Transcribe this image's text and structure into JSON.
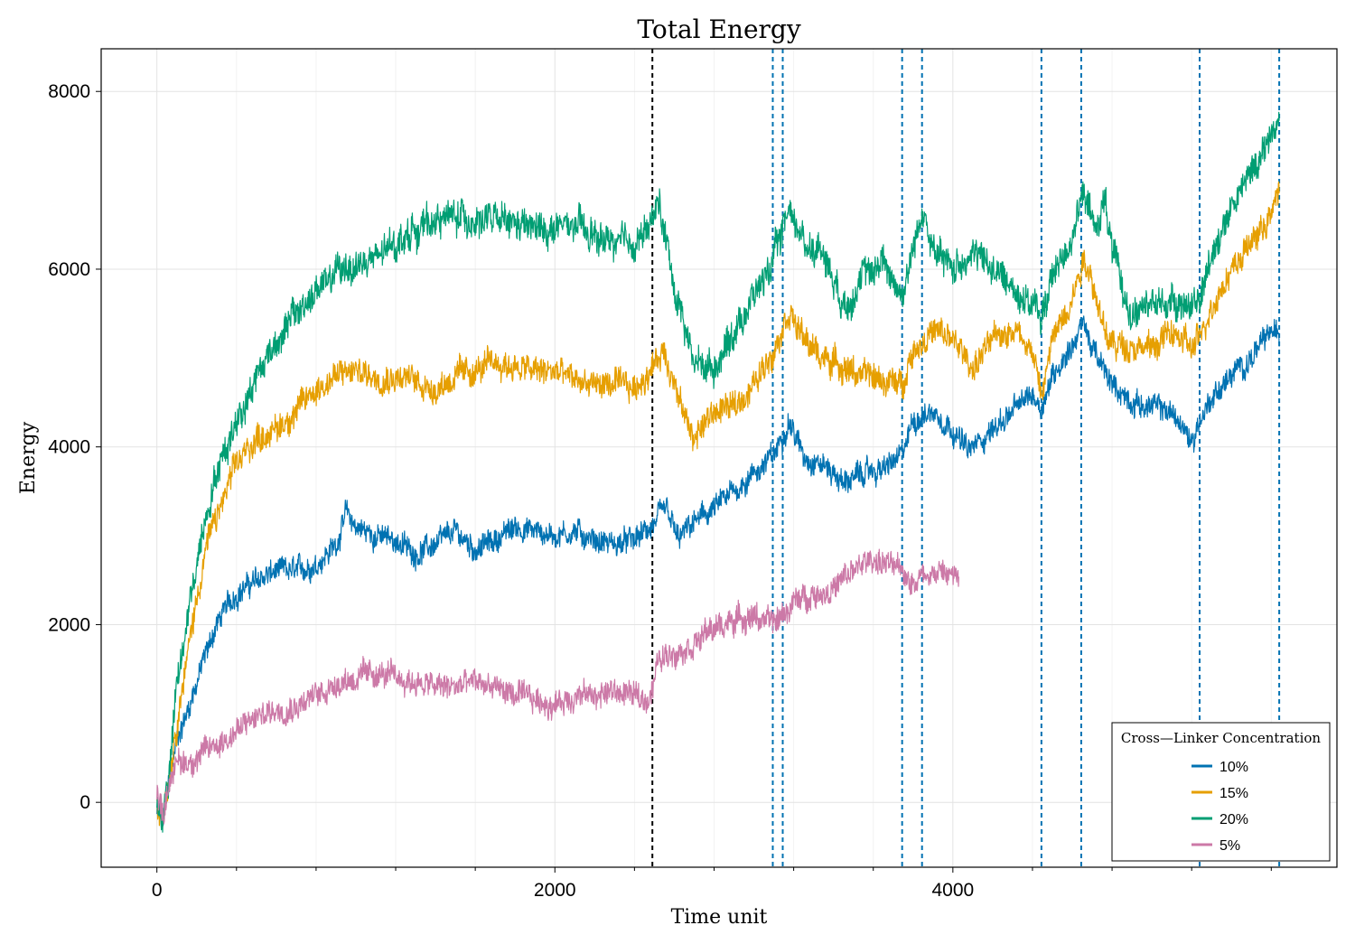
{
  "chart_data": {
    "type": "line",
    "title": "Total Energy",
    "xlabel": "Time unit",
    "ylabel": "Energy",
    "xlim": [
      -280,
      5930
    ],
    "ylim": [
      -730,
      8480
    ],
    "xticks": [
      0,
      2000,
      4000
    ],
    "xtick_labels": [
      "0",
      "2000",
      "4000"
    ],
    "yticks": [
      0,
      2000,
      4000,
      6000,
      8000
    ],
    "ytick_labels": [
      "0",
      "2000",
      "4000",
      "6000",
      "8000"
    ],
    "x_minor_ticks": [
      400,
      800,
      1200,
      1600,
      2400,
      2800,
      3200,
      3600,
      4400,
      4800,
      5200,
      5600
    ],
    "grid": true,
    "legend": {
      "title": "Cross—Linker Concentration",
      "placement": "bottom-right"
    },
    "vlines": [
      {
        "x": 2490,
        "color": "#000000",
        "style": "dashed"
      },
      {
        "x": 3095,
        "color": "#0072b2",
        "style": "dashed"
      },
      {
        "x": 3145,
        "color": "#0072b2",
        "style": "dashed"
      },
      {
        "x": 3745,
        "color": "#0072b2",
        "style": "dashed"
      },
      {
        "x": 3845,
        "color": "#0072b2",
        "style": "dashed"
      },
      {
        "x": 4445,
        "color": "#0072b2",
        "style": "dashed"
      },
      {
        "x": 4645,
        "color": "#0072b2",
        "style": "dashed"
      },
      {
        "x": 5240,
        "color": "#0072b2",
        "style": "dashed"
      },
      {
        "x": 5640,
        "color": "#0072b2",
        "style": "dashed"
      }
    ],
    "series": [
      {
        "name": "10%",
        "color": "#0072b2",
        "band": 220,
        "points": [
          [
            0,
            -100
          ],
          [
            30,
            -250
          ],
          [
            60,
            200
          ],
          [
            100,
            700
          ],
          [
            150,
            1000
          ],
          [
            200,
            1350
          ],
          [
            250,
            1700
          ],
          [
            300,
            2000
          ],
          [
            350,
            2200
          ],
          [
            400,
            2350
          ],
          [
            500,
            2500
          ],
          [
            600,
            2600
          ],
          [
            700,
            2600
          ],
          [
            800,
            2680
          ],
          [
            900,
            2900
          ],
          [
            950,
            3250
          ],
          [
            1000,
            3100
          ],
          [
            1100,
            3000
          ],
          [
            1200,
            2950
          ],
          [
            1300,
            2800
          ],
          [
            1400,
            2900
          ],
          [
            1500,
            3050
          ],
          [
            1600,
            2850
          ],
          [
            1700,
            2950
          ],
          [
            1800,
            3100
          ],
          [
            1900,
            3050
          ],
          [
            2000,
            3000
          ],
          [
            2100,
            3050
          ],
          [
            2200,
            2950
          ],
          [
            2300,
            2900
          ],
          [
            2400,
            2950
          ],
          [
            2490,
            3100
          ],
          [
            2560,
            3300
          ],
          [
            2620,
            2950
          ],
          [
            2700,
            3150
          ],
          [
            2800,
            3300
          ],
          [
            2900,
            3500
          ],
          [
            3000,
            3700
          ],
          [
            3100,
            3900
          ],
          [
            3175,
            4300
          ],
          [
            3250,
            3900
          ],
          [
            3350,
            3800
          ],
          [
            3450,
            3600
          ],
          [
            3550,
            3700
          ],
          [
            3650,
            3750
          ],
          [
            3745,
            3900
          ],
          [
            3800,
            4300
          ],
          [
            3900,
            4400
          ],
          [
            4000,
            4200
          ],
          [
            4080,
            3950
          ],
          [
            4200,
            4200
          ],
          [
            4300,
            4400
          ],
          [
            4400,
            4600
          ],
          [
            4445,
            4450
          ],
          [
            4500,
            4800
          ],
          [
            4600,
            5150
          ],
          [
            4660,
            5400
          ],
          [
            4700,
            5100
          ],
          [
            4800,
            4700
          ],
          [
            4900,
            4500
          ],
          [
            5000,
            4450
          ],
          [
            5100,
            4400
          ],
          [
            5200,
            4050
          ],
          [
            5240,
            4300
          ],
          [
            5300,
            4550
          ],
          [
            5400,
            4800
          ],
          [
            5500,
            5000
          ],
          [
            5600,
            5300
          ],
          [
            5640,
            5250
          ]
        ]
      },
      {
        "name": "15%",
        "color": "#e69f00",
        "band": 260,
        "points": [
          [
            0,
            -50
          ],
          [
            30,
            -100
          ],
          [
            60,
            300
          ],
          [
            100,
            900
          ],
          [
            150,
            1600
          ],
          [
            200,
            2300
          ],
          [
            250,
            2900
          ],
          [
            300,
            3200
          ],
          [
            400,
            3800
          ],
          [
            500,
            4100
          ],
          [
            600,
            4200
          ],
          [
            700,
            4400
          ],
          [
            800,
            4650
          ],
          [
            900,
            4800
          ],
          [
            1000,
            4850
          ],
          [
            1100,
            4800
          ],
          [
            1200,
            4800
          ],
          [
            1300,
            4750
          ],
          [
            1400,
            4650
          ],
          [
            1500,
            4800
          ],
          [
            1600,
            4850
          ],
          [
            1700,
            4950
          ],
          [
            1800,
            4900
          ],
          [
            1900,
            4850
          ],
          [
            2000,
            4850
          ],
          [
            2100,
            4750
          ],
          [
            2200,
            4700
          ],
          [
            2300,
            4700
          ],
          [
            2400,
            4650
          ],
          [
            2490,
            4900
          ],
          [
            2550,
            5100
          ],
          [
            2640,
            4400
          ],
          [
            2700,
            4100
          ],
          [
            2800,
            4400
          ],
          [
            2900,
            4450
          ],
          [
            3000,
            4700
          ],
          [
            3100,
            5100
          ],
          [
            3175,
            5550
          ],
          [
            3250,
            5200
          ],
          [
            3350,
            5000
          ],
          [
            3450,
            4900
          ],
          [
            3550,
            4800
          ],
          [
            3650,
            4750
          ],
          [
            3745,
            4700
          ],
          [
            3800,
            5100
          ],
          [
            3900,
            5300
          ],
          [
            4000,
            5200
          ],
          [
            4100,
            4900
          ],
          [
            4200,
            5200
          ],
          [
            4300,
            5350
          ],
          [
            4400,
            5100
          ],
          [
            4445,
            4550
          ],
          [
            4500,
            5200
          ],
          [
            4600,
            5700
          ],
          [
            4660,
            6150
          ],
          [
            4700,
            5900
          ],
          [
            4760,
            5300
          ],
          [
            4800,
            5150
          ],
          [
            4900,
            5150
          ],
          [
            5000,
            5100
          ],
          [
            5100,
            5300
          ],
          [
            5200,
            5100
          ],
          [
            5240,
            5200
          ],
          [
            5300,
            5600
          ],
          [
            5400,
            6000
          ],
          [
            5500,
            6300
          ],
          [
            5600,
            6600
          ],
          [
            5640,
            6900
          ]
        ]
      },
      {
        "name": "20%",
        "color": "#009e73",
        "band": 300,
        "points": [
          [
            0,
            -50
          ],
          [
            30,
            -150
          ],
          [
            60,
            300
          ],
          [
            100,
            1300
          ],
          [
            150,
            2000
          ],
          [
            200,
            2700
          ],
          [
            250,
            3300
          ],
          [
            300,
            3700
          ],
          [
            400,
            4300
          ],
          [
            500,
            4800
          ],
          [
            600,
            5200
          ],
          [
            700,
            5500
          ],
          [
            800,
            5750
          ],
          [
            900,
            5950
          ],
          [
            1000,
            6050
          ],
          [
            1100,
            6100
          ],
          [
            1200,
            6300
          ],
          [
            1300,
            6450
          ],
          [
            1400,
            6550
          ],
          [
            1500,
            6600
          ],
          [
            1600,
            6550
          ],
          [
            1700,
            6550
          ],
          [
            1800,
            6500
          ],
          [
            1900,
            6450
          ],
          [
            2000,
            6450
          ],
          [
            2100,
            6500
          ],
          [
            2200,
            6350
          ],
          [
            2300,
            6300
          ],
          [
            2400,
            6300
          ],
          [
            2490,
            6500
          ],
          [
            2520,
            6800
          ],
          [
            2600,
            5800
          ],
          [
            2700,
            4950
          ],
          [
            2800,
            4900
          ],
          [
            2900,
            5300
          ],
          [
            3000,
            5700
          ],
          [
            3100,
            6100
          ],
          [
            3175,
            6700
          ],
          [
            3250,
            6300
          ],
          [
            3350,
            6200
          ],
          [
            3450,
            5600
          ],
          [
            3550,
            5900
          ],
          [
            3650,
            6100
          ],
          [
            3745,
            5700
          ],
          [
            3800,
            6200
          ],
          [
            3850,
            6700
          ],
          [
            3900,
            6200
          ],
          [
            4000,
            6000
          ],
          [
            4100,
            6200
          ],
          [
            4200,
            6000
          ],
          [
            4300,
            5800
          ],
          [
            4400,
            5600
          ],
          [
            4445,
            5450
          ],
          [
            4500,
            5900
          ],
          [
            4600,
            6400
          ],
          [
            4660,
            6850
          ],
          [
            4720,
            6400
          ],
          [
            4760,
            6850
          ],
          [
            4800,
            6200
          ],
          [
            4850,
            5800
          ],
          [
            4900,
            5500
          ],
          [
            5000,
            5600
          ],
          [
            5100,
            5650
          ],
          [
            5200,
            5600
          ],
          [
            5240,
            5600
          ],
          [
            5300,
            6200
          ],
          [
            5400,
            6700
          ],
          [
            5500,
            7100
          ],
          [
            5600,
            7500
          ],
          [
            5640,
            7700
          ]
        ]
      },
      {
        "name": "5%",
        "color": "#cc79a7",
        "band": 240,
        "points": [
          [
            0,
            100
          ],
          [
            30,
            -150
          ],
          [
            60,
            250
          ],
          [
            100,
            450
          ],
          [
            150,
            450
          ],
          [
            200,
            500
          ],
          [
            300,
            650
          ],
          [
            400,
            800
          ],
          [
            500,
            950
          ],
          [
            600,
            1050
          ],
          [
            700,
            1100
          ],
          [
            800,
            1200
          ],
          [
            900,
            1350
          ],
          [
            1000,
            1400
          ],
          [
            1100,
            1450
          ],
          [
            1200,
            1400
          ],
          [
            1300,
            1350
          ],
          [
            1400,
            1300
          ],
          [
            1500,
            1300
          ],
          [
            1600,
            1350
          ],
          [
            1700,
            1300
          ],
          [
            1800,
            1200
          ],
          [
            1900,
            1150
          ],
          [
            2000,
            1100
          ],
          [
            2100,
            1200
          ],
          [
            2200,
            1200
          ],
          [
            2300,
            1250
          ],
          [
            2400,
            1200
          ],
          [
            2460,
            1150
          ],
          [
            2490,
            1300
          ],
          [
            2520,
            1600
          ],
          [
            2600,
            1700
          ],
          [
            2700,
            1800
          ],
          [
            2800,
            1950
          ],
          [
            2900,
            2050
          ],
          [
            3000,
            2100
          ],
          [
            3100,
            2000
          ],
          [
            3200,
            2250
          ],
          [
            3300,
            2350
          ],
          [
            3400,
            2400
          ],
          [
            3500,
            2600
          ],
          [
            3600,
            2750
          ],
          [
            3700,
            2650
          ],
          [
            3800,
            2500
          ],
          [
            3900,
            2600
          ],
          [
            4000,
            2550
          ],
          [
            4030,
            2500
          ]
        ]
      }
    ]
  }
}
